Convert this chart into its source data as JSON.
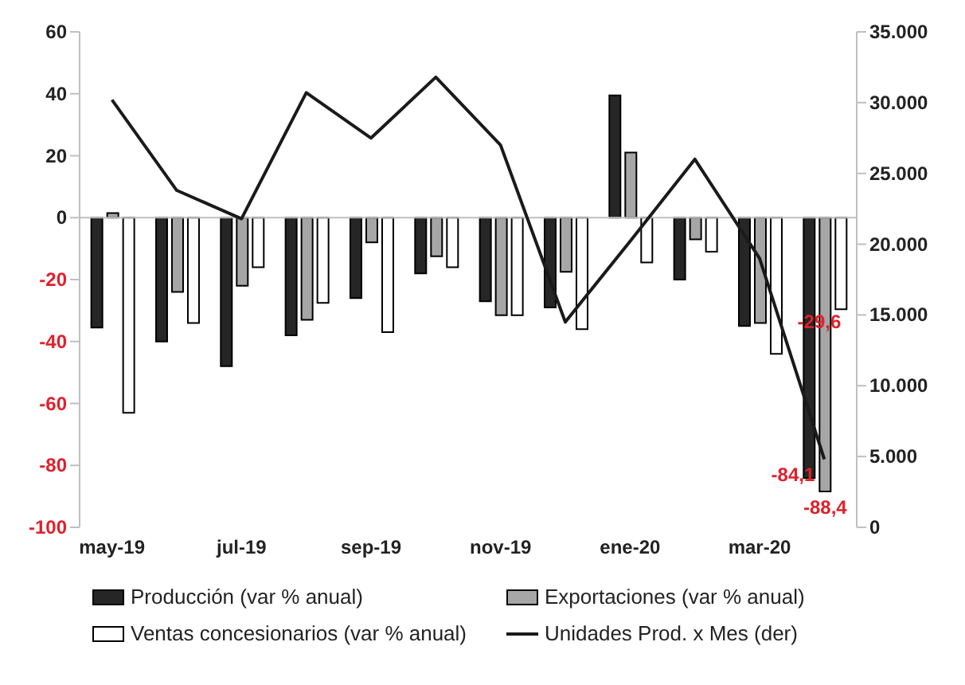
{
  "chart_data": {
    "type": "bar",
    "categories": [
      "may-19",
      null,
      "jul-19",
      null,
      "sep-19",
      null,
      "nov-19",
      null,
      "ene-20",
      null,
      "mar-20",
      null
    ],
    "series": [
      {
        "name": "Producción (var % anual)",
        "color": "#262626",
        "values": [
          -35.5,
          -40,
          -48,
          -38,
          -26,
          -18,
          -27,
          -29,
          39.5,
          -20,
          -35,
          -84.1
        ],
        "value_labels": [
          null,
          null,
          null,
          null,
          null,
          null,
          null,
          null,
          null,
          null,
          null,
          "-84,1"
        ]
      },
      {
        "name": "Exportaciones (var % anual)",
        "color": "#a6a6a6",
        "values": [
          1.5,
          -24,
          -22,
          -33,
          -8,
          -12.5,
          -31.5,
          -17.5,
          21,
          -7,
          -34,
          -88.4
        ],
        "value_labels": [
          null,
          null,
          null,
          null,
          null,
          null,
          null,
          null,
          null,
          null,
          null,
          "-88,4"
        ]
      },
      {
        "name": "Ventas concesionarios (var % anual)",
        "color": "#ffffff",
        "values": [
          -63,
          -34,
          -16,
          -27.5,
          -37,
          -16,
          -31.5,
          -36,
          -14.5,
          -11,
          -44,
          -29.6
        ],
        "value_labels": [
          null,
          null,
          null,
          null,
          null,
          null,
          null,
          null,
          null,
          null,
          null,
          "-29,6"
        ]
      },
      {
        "name": "Unidades Prod. x Mes (der)",
        "type": "line",
        "axis": "y2",
        "color": "#1a1a1a",
        "values": [
          30200,
          23800,
          21800,
          30700,
          27500,
          31800,
          27000,
          14500,
          20200,
          26000,
          19000,
          4800
        ]
      }
    ],
    "ylim": [
      -100,
      60
    ],
    "yticks": [
      -100,
      -80,
      -60,
      -40,
      -20,
      0,
      20,
      40,
      60
    ],
    "y2lim": [
      0,
      35000
    ],
    "y2ticks": [
      0,
      {
        "value": 5000,
        "label": "5.000"
      },
      {
        "value": 10000,
        "label": "10.000"
      },
      {
        "value": 15000,
        "label": "15.000"
      },
      {
        "value": 20000,
        "label": "20.000"
      },
      {
        "value": 25000,
        "label": "25.000"
      },
      {
        "value": 30000,
        "label": "30.000"
      },
      {
        "value": 35000,
        "label": "35.000"
      }
    ],
    "ref_lines": [
      {
        "axis": "y",
        "value": 0,
        "color": "#bfbfbf"
      }
    ],
    "grid": false,
    "legend": "bottom",
    "marker": "none"
  }
}
